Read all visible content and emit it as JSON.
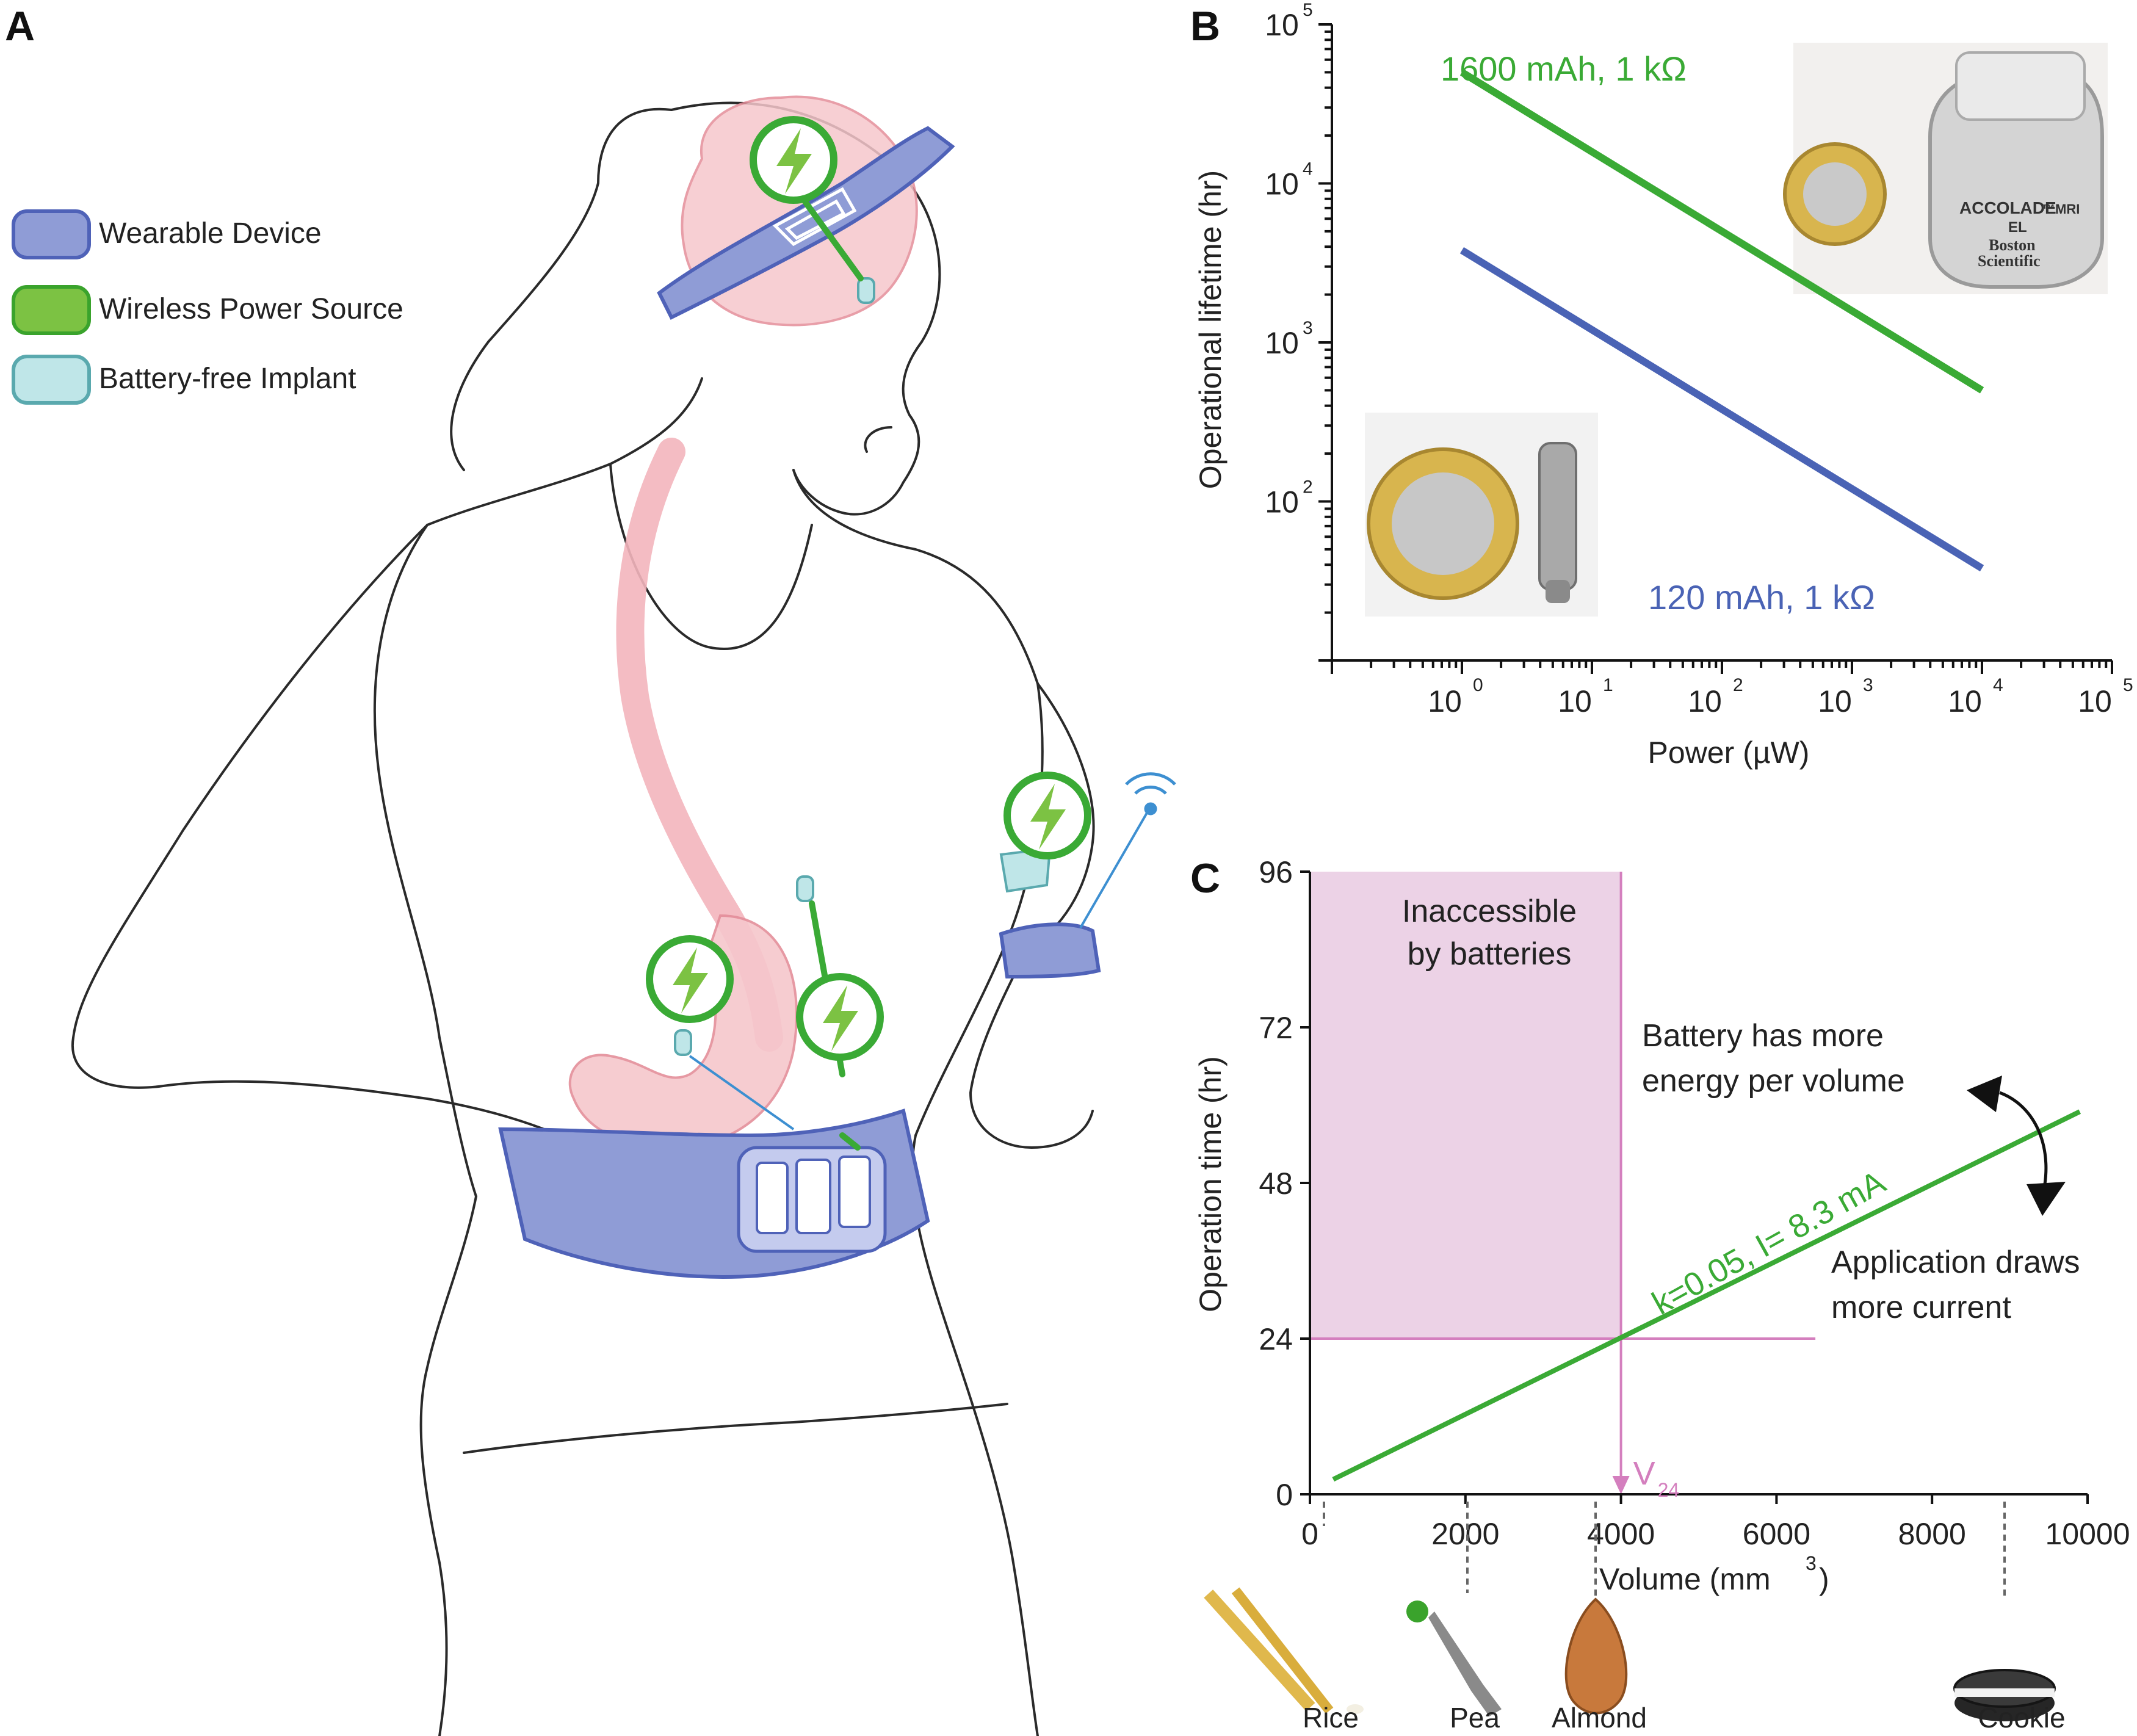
{
  "panels": {
    "a": "A",
    "b": "B",
    "c": "C"
  },
  "legend": {
    "items": [
      {
        "label": "Wearable Device",
        "color": "#8f9cd6",
        "border": "#4f62b8"
      },
      {
        "label": "Wireless Power Source",
        "color": "#7cc243",
        "border": "#3aa32c"
      },
      {
        "label": "Battery-free Implant",
        "color": "#bfe6e8",
        "border": "#5aa9ae"
      }
    ]
  },
  "chart_data": [
    {
      "panel": "B",
      "type": "line",
      "xscale": "log",
      "yscale": "log",
      "xlabel": "Power (µW)",
      "ylabel": "Operational lifetime (hr)",
      "xlim": [
        0.1,
        100000
      ],
      "ylim": [
        10,
        100000
      ],
      "x_ticks": [
        {
          "base": "10",
          "exp": "0"
        },
        {
          "base": "10",
          "exp": "1"
        },
        {
          "base": "10",
          "exp": "2"
        },
        {
          "base": "10",
          "exp": "3"
        },
        {
          "base": "10",
          "exp": "4"
        },
        {
          "base": "10",
          "exp": "5"
        }
      ],
      "y_ticks": [
        {
          "base": "10",
          "exp": "2"
        },
        {
          "base": "10",
          "exp": "3"
        },
        {
          "base": "10",
          "exp": "4"
        },
        {
          "base": "10",
          "exp": "5"
        }
      ],
      "series": [
        {
          "name": "1600 mAh, 1 kΩ",
          "color": "#3aaa35",
          "x": [
            1,
            10000
          ],
          "y": [
            50000,
            500
          ]
        },
        {
          "name": "120 mAh, 1 kΩ",
          "color": "#4a63b5",
          "x": [
            1,
            10000
          ],
          "y": [
            3800,
            38
          ]
        }
      ]
    },
    {
      "panel": "C",
      "type": "line",
      "xlabel": "Volume (mm",
      "xlabel_sup": "3",
      "xlabel_end": ")",
      "ylabel": "Operation time (hr)",
      "xlim": [
        0,
        10000
      ],
      "ylim": [
        0,
        96
      ],
      "x_ticks": [
        "0",
        "2000",
        "4000",
        "6000",
        "8000",
        "10000"
      ],
      "y_ticks": [
        "0",
        "24",
        "48",
        "72",
        "96"
      ],
      "series": [
        {
          "name": "k=0.05, I= 8.3 mA",
          "color": "#3aaa35",
          "x": [
            300,
            9900
          ],
          "y": [
            2.3,
            59
          ]
        }
      ],
      "region_label_1": "Inaccessible",
      "region_label_2": "by batteries",
      "region_color": "#ecd2e6",
      "marker": {
        "label": "V",
        "sub": "24",
        "x": 4000,
        "y": 24,
        "color": "#d47fbe"
      },
      "annotation_up_1": "Battery has more",
      "annotation_up_2": "energy per volume",
      "annotation_down_1": "Application draws",
      "annotation_down_2": "more current",
      "reference_items": [
        "Rice",
        "Pea",
        "Almond",
        "Cookie"
      ]
    }
  ],
  "photos": {
    "pacemaker_1": "ACCOLADE",
    "pacemaker_1_suffix": "™MRI",
    "pacemaker_2": "EL",
    "pacemaker_3": "Boston",
    "pacemaker_4": "Scientific"
  }
}
